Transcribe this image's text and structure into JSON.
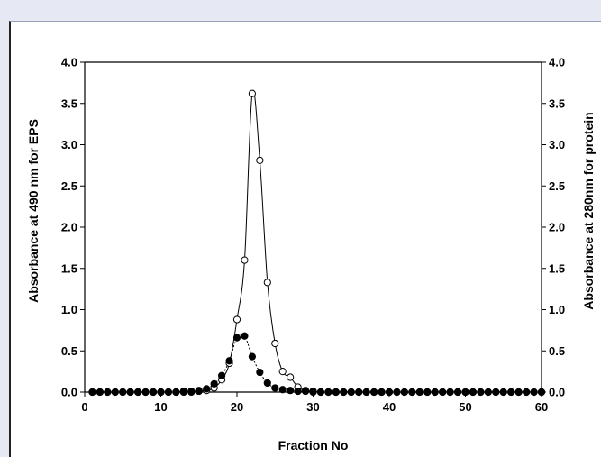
{
  "chart_data": {
    "type": "line",
    "xlabel": "Fraction No",
    "ylabel_left": "Absorbance at 490 nm for EPS",
    "ylabel_right": "Absorbance at 280nm for protein",
    "xlim": [
      0,
      60
    ],
    "ylim_left": [
      0,
      4
    ],
    "ylim_right": [
      0,
      4
    ],
    "x_ticks": [
      "0",
      "10",
      "20",
      "30",
      "40",
      "50",
      "60"
    ],
    "y_ticks": [
      "0.0",
      "0.5",
      "1.0",
      "1.5",
      "2.0",
      "2.5",
      "3.0",
      "3.5",
      "4.0"
    ],
    "grid": false,
    "series": [
      {
        "marker": "open-circle",
        "line": "solid",
        "axis": "left",
        "x": [
          1,
          2,
          3,
          4,
          5,
          6,
          7,
          8,
          9,
          10,
          11,
          12,
          13,
          14,
          15,
          16,
          17,
          18,
          19,
          20,
          21,
          22,
          23,
          24,
          25,
          26,
          27,
          28,
          29,
          30,
          31,
          32,
          33,
          34,
          35,
          36,
          37,
          38,
          39,
          40,
          41,
          42,
          43,
          44,
          45,
          46,
          47,
          48,
          49,
          50,
          51,
          52,
          53,
          54,
          55,
          56,
          57,
          58,
          59,
          60
        ],
        "y": [
          0,
          0,
          0,
          0,
          0,
          0,
          0,
          0,
          0,
          0,
          0,
          0,
          0,
          0,
          0.01,
          0.02,
          0.05,
          0.15,
          0.35,
          0.88,
          1.6,
          3.62,
          2.81,
          1.33,
          0.59,
          0.25,
          0.18,
          0.06,
          0.02,
          0.01,
          0,
          0,
          0,
          0,
          0,
          0,
          0,
          0,
          0,
          0,
          0,
          0,
          0,
          0,
          0,
          0,
          0,
          0,
          0,
          0,
          0,
          0,
          0,
          0,
          0,
          0,
          0,
          0,
          0,
          0
        ]
      },
      {
        "marker": "filled-circle",
        "line": "dotted",
        "axis": "right",
        "x": [
          1,
          2,
          3,
          4,
          5,
          6,
          7,
          8,
          9,
          10,
          11,
          12,
          13,
          14,
          15,
          16,
          17,
          18,
          19,
          20,
          21,
          22,
          23,
          24,
          25,
          26,
          27,
          28,
          29,
          30,
          31,
          32,
          33,
          34,
          35,
          36,
          37,
          38,
          39,
          40,
          41,
          42,
          43,
          44,
          45,
          46,
          47,
          48,
          49,
          50,
          51,
          52,
          53,
          54,
          55,
          56,
          57,
          58,
          59,
          60
        ],
        "y": [
          0,
          0,
          0,
          0,
          0,
          0,
          0,
          0,
          0,
          0,
          0,
          0,
          0.01,
          0.01,
          0.02,
          0.04,
          0.1,
          0.2,
          0.38,
          0.66,
          0.68,
          0.43,
          0.24,
          0.11,
          0.05,
          0.03,
          0.02,
          0.01,
          0.01,
          0,
          0,
          0,
          0,
          0,
          0,
          0,
          0,
          0,
          0,
          0,
          0,
          0,
          0,
          0,
          0,
          0,
          0,
          0,
          0,
          0,
          0,
          0,
          0,
          0,
          0,
          0,
          0,
          0,
          0,
          0
        ]
      }
    ]
  }
}
